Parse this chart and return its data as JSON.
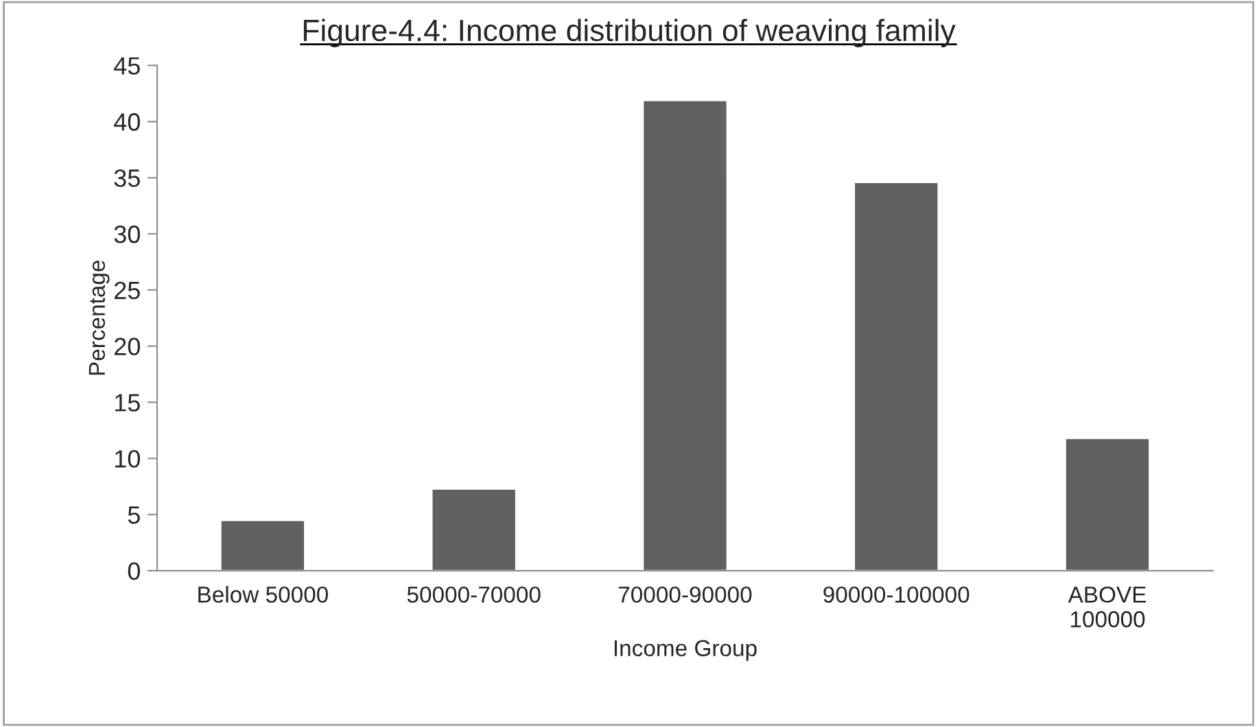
{
  "chart_data": {
    "type": "bar",
    "title": "Figure-4.4: Income distribution of weaving family",
    "xlabel": "Income Group",
    "ylabel": "Percentage",
    "categories": [
      "Below 50000",
      "50000-70000",
      "70000-90000",
      "90000-100000",
      "ABOVE\n100000"
    ],
    "values": [
      4.5,
      7.3,
      41.9,
      34.6,
      11.8
    ],
    "color": "#606060",
    "ylim": [
      0,
      45
    ],
    "yticks": [
      0,
      5,
      10,
      15,
      20,
      25,
      30,
      35,
      40,
      45
    ],
    "grid": false
  }
}
